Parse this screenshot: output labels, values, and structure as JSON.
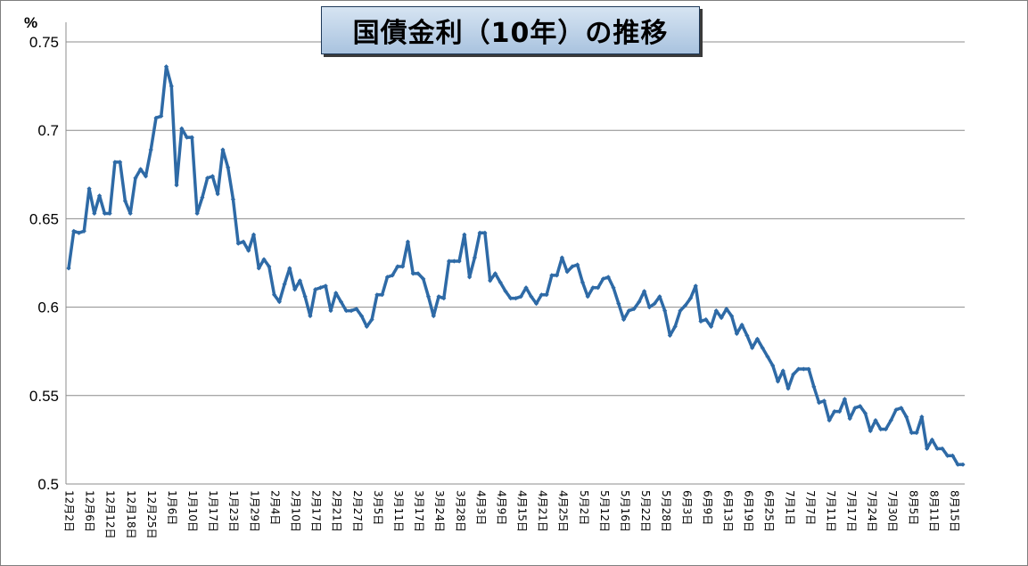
{
  "chart_data": {
    "type": "line",
    "title": "国債金利（10年）の推移",
    "ylabel": "%",
    "ylim": [
      0.5,
      0.75
    ],
    "yticks": [
      "0.5",
      "0.55",
      "0.6",
      "0.65",
      "0.7",
      "0.75"
    ],
    "grid": true,
    "line_color": "#2e6aa6",
    "xtick_labels": [
      "12月2日",
      "12月6日",
      "12月12日",
      "12月18日",
      "12月25日",
      "1月6日",
      "1月10日",
      "1月17日",
      "1月23日",
      "1月29日",
      "2月4日",
      "2月10日",
      "2月17日",
      "2月21日",
      "2月27日",
      "3月5日",
      "3月11日",
      "3月17日",
      "3月24日",
      "3月28日",
      "4月3日",
      "4月9日",
      "4月15日",
      "4月21日",
      "4月25日",
      "5月2日",
      "5月12日",
      "5月16日",
      "5月22日",
      "5月28日",
      "6月3日",
      "6月9日",
      "6月13日",
      "6月19日",
      "6月25日",
      "7月1日",
      "7月7日",
      "7月11日",
      "7月17日",
      "7月24日",
      "7月30日",
      "8月5日",
      "8月11日",
      "8月15日"
    ],
    "series": [
      {
        "values": [
          0.622,
          0.643,
          0.642,
          0.643,
          0.667,
          0.653,
          0.663,
          0.653,
          0.653,
          0.682,
          0.682,
          0.66,
          0.653,
          0.673,
          0.678,
          0.674,
          0.689,
          0.707,
          0.708,
          0.736,
          0.725,
          0.669,
          0.701,
          0.696,
          0.696,
          0.653,
          0.662,
          0.673,
          0.674,
          0.664,
          0.689,
          0.679,
          0.661,
          0.636,
          0.637,
          0.632,
          0.641,
          0.622,
          0.627,
          0.623,
          0.607,
          0.603,
          0.613,
          0.622,
          0.61,
          0.615,
          0.606,
          0.595,
          0.61,
          0.611,
          0.612,
          0.598,
          0.608,
          0.603,
          0.598,
          0.598,
          0.599,
          0.595,
          0.589,
          0.593,
          0.607,
          0.607,
          0.617,
          0.618,
          0.623,
          0.623,
          0.637,
          0.619,
          0.619,
          0.616,
          0.606,
          0.595,
          0.606,
          0.605,
          0.626,
          0.626,
          0.626,
          0.641,
          0.617,
          0.628,
          0.642,
          0.642,
          0.615,
          0.619,
          0.614,
          0.609,
          0.605,
          0.605,
          0.606,
          0.611,
          0.606,
          0.602,
          0.607,
          0.607,
          0.618,
          0.618,
          0.628,
          0.62,
          0.623,
          0.624,
          0.614,
          0.606,
          0.611,
          0.611,
          0.616,
          0.617,
          0.611,
          0.602,
          0.593,
          0.598,
          0.599,
          0.603,
          0.609,
          0.6,
          0.602,
          0.606,
          0.598,
          0.584,
          0.589,
          0.598,
          0.601,
          0.605,
          0.612,
          0.592,
          0.593,
          0.589,
          0.598,
          0.594,
          0.599,
          0.595,
          0.585,
          0.59,
          0.584,
          0.577,
          0.582,
          0.577,
          0.572,
          0.567,
          0.558,
          0.564,
          0.554,
          0.562,
          0.565,
          0.565,
          0.565,
          0.555,
          0.546,
          0.547,
          0.536,
          0.541,
          0.541,
          0.548,
          0.537,
          0.543,
          0.544,
          0.54,
          0.53,
          0.536,
          0.531,
          0.531,
          0.536,
          0.542,
          0.543,
          0.538,
          0.529,
          0.529,
          0.538,
          0.52,
          0.525,
          0.52,
          0.52,
          0.516,
          0.516,
          0.511,
          0.511
        ]
      }
    ]
  }
}
